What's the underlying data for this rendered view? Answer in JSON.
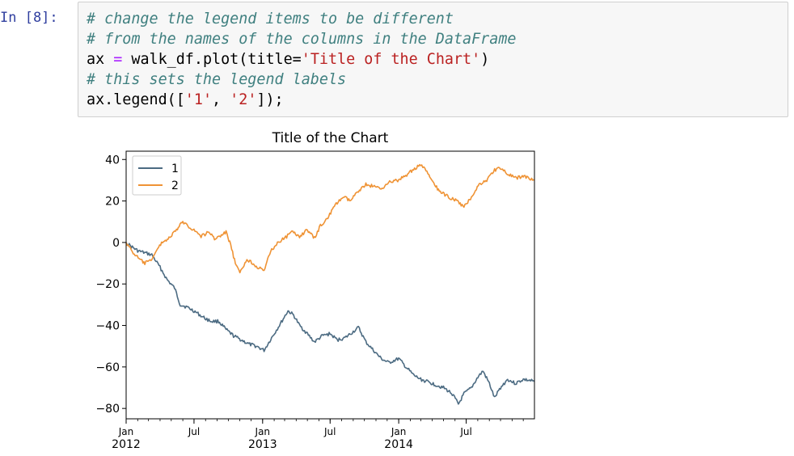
{
  "prompt": {
    "label": "In [8]:"
  },
  "code": {
    "line1": "# change the legend items to be different",
    "line2": "# from the names of the columns in the DataFrame",
    "line3": {
      "var": "ax",
      "assign": " = ",
      "call": "walk_df.plot(title=",
      "str": "'Title of the Chart'",
      "close": ")"
    },
    "line4": "# this sets the legend labels",
    "line5": {
      "call": "ax.legend([",
      "s1": "'1'",
      "comma": ", ",
      "s2": "'2'",
      "close": "]);"
    }
  },
  "colors": {
    "series1": "#4c6b82",
    "series2": "#ef9335",
    "comment": "#408080",
    "string": "#ba2121"
  },
  "chart_data": {
    "type": "line",
    "title": "Title of the Chart",
    "xlabel": "",
    "ylabel": "",
    "ylim": [
      -85,
      44
    ],
    "y_ticks": [
      40,
      20,
      0,
      -20,
      -40,
      -60,
      -80
    ],
    "y_tick_labels": [
      "40",
      "20",
      "0",
      "−20",
      "−40",
      "−60",
      "−80"
    ],
    "x_range": [
      "2012-01-01",
      "2014-12-31"
    ],
    "x_ticks": [
      {
        "date": "2012-01-01",
        "label": "Jan",
        "sub": "2012"
      },
      {
        "date": "2012-07-01",
        "label": "Jul",
        "sub": ""
      },
      {
        "date": "2013-01-01",
        "label": "Jan",
        "sub": "2013"
      },
      {
        "date": "2013-07-01",
        "label": "Jul",
        "sub": ""
      },
      {
        "date": "2014-01-01",
        "label": "Jan",
        "sub": "2014"
      },
      {
        "date": "2014-07-01",
        "label": "Jul",
        "sub": ""
      }
    ],
    "legend_position": "top-left",
    "series": [
      {
        "name": "1",
        "color": "#4c6b82",
        "points": [
          [
            "2012-01-01",
            0
          ],
          [
            "2012-01-15",
            -2
          ],
          [
            "2012-02-01",
            -4
          ],
          [
            "2012-02-20",
            -5
          ],
          [
            "2012-03-10",
            -6
          ],
          [
            "2012-04-01",
            -12
          ],
          [
            "2012-04-20",
            -18
          ],
          [
            "2012-05-10",
            -22
          ],
          [
            "2012-05-25",
            -30
          ],
          [
            "2012-06-10",
            -31
          ],
          [
            "2012-07-01",
            -33
          ],
          [
            "2012-07-25",
            -36
          ],
          [
            "2012-08-15",
            -38
          ],
          [
            "2012-09-05",
            -38
          ],
          [
            "2012-09-25",
            -42
          ],
          [
            "2012-10-15",
            -45
          ],
          [
            "2012-11-05",
            -47
          ],
          [
            "2012-11-25",
            -49
          ],
          [
            "2012-12-15",
            -50
          ],
          [
            "2013-01-05",
            -52
          ],
          [
            "2013-01-25",
            -46
          ],
          [
            "2013-02-15",
            -40
          ],
          [
            "2013-03-10",
            -33
          ],
          [
            "2013-03-25",
            -35
          ],
          [
            "2013-04-10",
            -40
          ],
          [
            "2013-05-01",
            -44
          ],
          [
            "2013-05-20",
            -48
          ],
          [
            "2013-06-10",
            -45
          ],
          [
            "2013-07-01",
            -44
          ],
          [
            "2013-07-20",
            -47
          ],
          [
            "2013-08-10",
            -46
          ],
          [
            "2013-09-01",
            -43
          ],
          [
            "2013-09-15",
            -41
          ],
          [
            "2013-10-05",
            -48
          ],
          [
            "2013-10-25",
            -52
          ],
          [
            "2013-11-15",
            -56
          ],
          [
            "2013-12-05",
            -58
          ],
          [
            "2014-01-01",
            -56
          ],
          [
            "2014-01-20",
            -60
          ],
          [
            "2014-02-10",
            -64
          ],
          [
            "2014-03-01",
            -66
          ],
          [
            "2014-04-01",
            -68
          ],
          [
            "2014-05-01",
            -70
          ],
          [
            "2014-05-25",
            -73
          ],
          [
            "2014-06-10",
            -78
          ],
          [
            "2014-06-25",
            -73
          ],
          [
            "2014-07-15",
            -70
          ],
          [
            "2014-08-01",
            -65
          ],
          [
            "2014-08-15",
            -62
          ],
          [
            "2014-09-01",
            -68
          ],
          [
            "2014-09-15",
            -75
          ],
          [
            "2014-10-01",
            -70
          ],
          [
            "2014-10-20",
            -66
          ],
          [
            "2014-11-10",
            -68
          ],
          [
            "2014-12-01",
            -66
          ],
          [
            "2014-12-31",
            -67
          ]
        ]
      },
      {
        "name": "2",
        "color": "#ef9335",
        "points": [
          [
            "2012-01-01",
            0
          ],
          [
            "2012-01-20",
            -5
          ],
          [
            "2012-02-05",
            -8
          ],
          [
            "2012-02-20",
            -10
          ],
          [
            "2012-03-05",
            -9
          ],
          [
            "2012-03-20",
            -5
          ],
          [
            "2012-04-05",
            0
          ],
          [
            "2012-04-25",
            2
          ],
          [
            "2012-05-15",
            6
          ],
          [
            "2012-06-01",
            10
          ],
          [
            "2012-06-15",
            8
          ],
          [
            "2012-07-01",
            6
          ],
          [
            "2012-07-20",
            3
          ],
          [
            "2012-08-10",
            5
          ],
          [
            "2012-08-25",
            2
          ],
          [
            "2012-09-10",
            3
          ],
          [
            "2012-09-25",
            5
          ],
          [
            "2012-10-05",
            0
          ],
          [
            "2012-10-20",
            -10
          ],
          [
            "2012-11-01",
            -15
          ],
          [
            "2012-11-20",
            -8
          ],
          [
            "2012-12-05",
            -10
          ],
          [
            "2012-12-20",
            -12
          ],
          [
            "2013-01-05",
            -14
          ],
          [
            "2013-01-20",
            -5
          ],
          [
            "2013-02-10",
            0
          ],
          [
            "2013-03-01",
            2
          ],
          [
            "2013-03-20",
            5
          ],
          [
            "2013-04-10",
            3
          ],
          [
            "2013-05-01",
            6
          ],
          [
            "2013-05-20",
            2
          ],
          [
            "2013-06-05",
            8
          ],
          [
            "2013-06-25",
            12
          ],
          [
            "2013-07-15",
            18
          ],
          [
            "2013-08-05",
            22
          ],
          [
            "2013-08-25",
            20
          ],
          [
            "2013-09-15",
            25
          ],
          [
            "2013-10-05",
            28
          ],
          [
            "2013-10-25",
            27
          ],
          [
            "2013-11-15",
            26
          ],
          [
            "2013-12-05",
            29
          ],
          [
            "2014-01-01",
            30
          ],
          [
            "2014-01-25",
            33
          ],
          [
            "2014-02-15",
            36
          ],
          [
            "2014-03-01",
            37
          ],
          [
            "2014-03-15",
            35
          ],
          [
            "2014-04-05",
            28
          ],
          [
            "2014-04-25",
            24
          ],
          [
            "2014-05-15",
            22
          ],
          [
            "2014-06-05",
            20
          ],
          [
            "2014-06-25",
            17
          ],
          [
            "2014-07-15",
            22
          ],
          [
            "2014-08-05",
            28
          ],
          [
            "2014-08-25",
            30
          ],
          [
            "2014-09-15",
            35
          ],
          [
            "2014-10-01",
            36
          ],
          [
            "2014-10-20",
            33
          ],
          [
            "2014-11-10",
            31
          ],
          [
            "2014-12-01",
            32
          ],
          [
            "2014-12-31",
            30
          ]
        ]
      }
    ]
  }
}
